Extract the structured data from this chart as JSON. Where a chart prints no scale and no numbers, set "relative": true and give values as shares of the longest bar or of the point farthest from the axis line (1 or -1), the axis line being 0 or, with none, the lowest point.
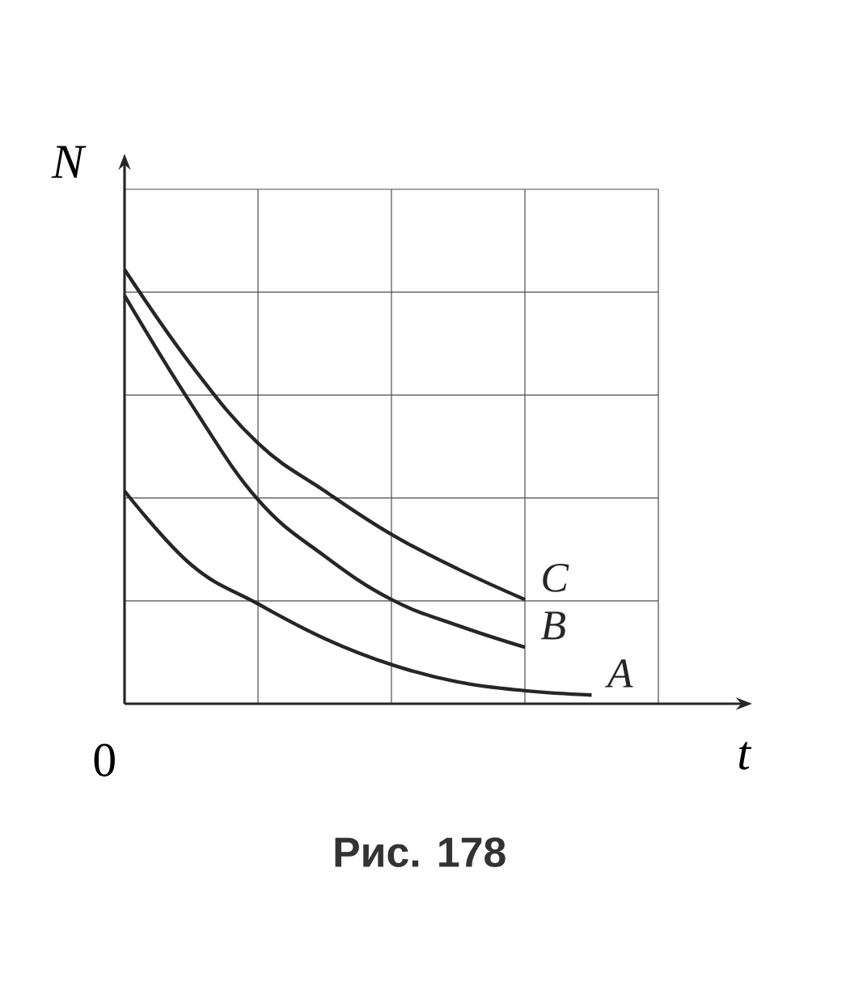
{
  "chart_data": {
    "type": "line",
    "relative": true,
    "xlabel": "t",
    "ylabel": "N",
    "categories": [
      null,
      null,
      null,
      null,
      null,
      null,
      null,
      null
    ],
    "series": [
      {
        "name": "A",
        "color": "#262626",
        "values": [
          0.49,
          0.32,
          0.23,
          0.15,
          0.09,
          0.05,
          0.03,
          0.02
        ]
      },
      {
        "name": "B",
        "color": "#262626",
        "values": [
          0.94,
          0.69,
          0.47,
          0.34,
          0.24,
          0.18,
          0.13,
          null
        ]
      },
      {
        "name": "C",
        "color": "#262626",
        "values": [
          1,
          0.78,
          0.6,
          0.49,
          0.39,
          0.31,
          0.24,
          null
        ]
      }
    ],
    "grid": true,
    "marker": "none",
    "line_style": "solid",
    "annotations": [
      "0",
      "Рис. 178"
    ]
  }
}
